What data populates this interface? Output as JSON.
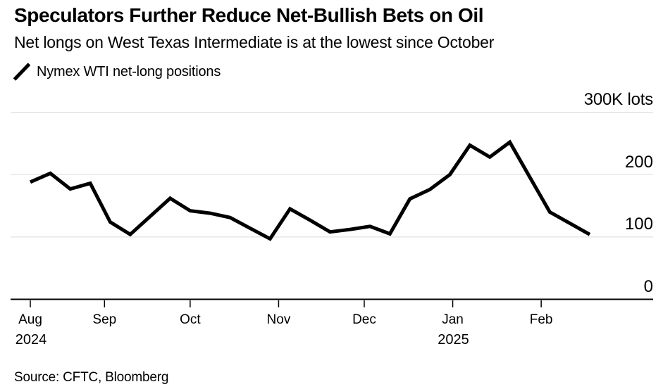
{
  "header": {
    "title": "Speculators Further Reduce Net-Bullish Bets on Oil",
    "subtitle": "Net longs on West Texas Intermediate is at the lowest since October"
  },
  "legend": {
    "marker": "diagonal-line-icon",
    "label": "Nymex WTI net-long positions"
  },
  "source": "Source: CFTC, Bloomberg",
  "colors": {
    "background": "#ffffff",
    "text": "#000000",
    "line": "#000000",
    "grid": "#d9d9d9",
    "axis": "#000000"
  },
  "chart_data": {
    "type": "line",
    "title": "Speculators Further Reduce Net-Bullish Bets on Oil",
    "subtitle": "Net longs on West Texas Intermediate is at the lowest since October",
    "unit": "thousands of lots",
    "grid": "horizontal",
    "legend_position": "top-left",
    "y_axis": {
      "side": "right",
      "range": [
        0,
        300
      ],
      "top_label": "300K lots",
      "tick_values": [
        300,
        200,
        100,
        0
      ],
      "tick_labels": [
        "300K lots",
        "200",
        "100",
        "0"
      ]
    },
    "x_axis": {
      "start_date": "2024-08-06",
      "end_date": "2025-02-18",
      "ticks": [
        {
          "label": "Aug",
          "date": "2024-08-06",
          "year_label": "2024"
        },
        {
          "label": "Sep",
          "date": "2024-09-01"
        },
        {
          "label": "Oct",
          "date": "2024-10-01"
        },
        {
          "label": "Nov",
          "date": "2024-11-01"
        },
        {
          "label": "Dec",
          "date": "2024-12-01"
        },
        {
          "label": "Jan",
          "date": "2025-01-01",
          "year_label": "2025"
        },
        {
          "label": "Feb",
          "date": "2025-02-01"
        }
      ]
    },
    "series": [
      {
        "name": "Nymex WTI net-long positions",
        "color": "#000000",
        "x": [
          "2024-08-06",
          "2024-08-13",
          "2024-08-20",
          "2024-08-27",
          "2024-09-03",
          "2024-09-10",
          "2024-09-17",
          "2024-09-24",
          "2024-10-01",
          "2024-10-08",
          "2024-10-15",
          "2024-10-22",
          "2024-10-29",
          "2024-11-05",
          "2024-11-12",
          "2024-11-19",
          "2024-11-26",
          "2024-12-03",
          "2024-12-10",
          "2024-12-17",
          "2024-12-24",
          "2024-12-31",
          "2025-01-07",
          "2025-01-14",
          "2025-01-21",
          "2025-01-28",
          "2025-02-04",
          "2025-02-11",
          "2025-02-18"
        ],
        "values": [
          188,
          202,
          177,
          186,
          124,
          104,
          133,
          162,
          142,
          138,
          131,
          114,
          97,
          145,
          127,
          108,
          112,
          117,
          105,
          161,
          176,
          200,
          247,
          228,
          252,
          196,
          140,
          122,
          104
        ]
      }
    ]
  }
}
